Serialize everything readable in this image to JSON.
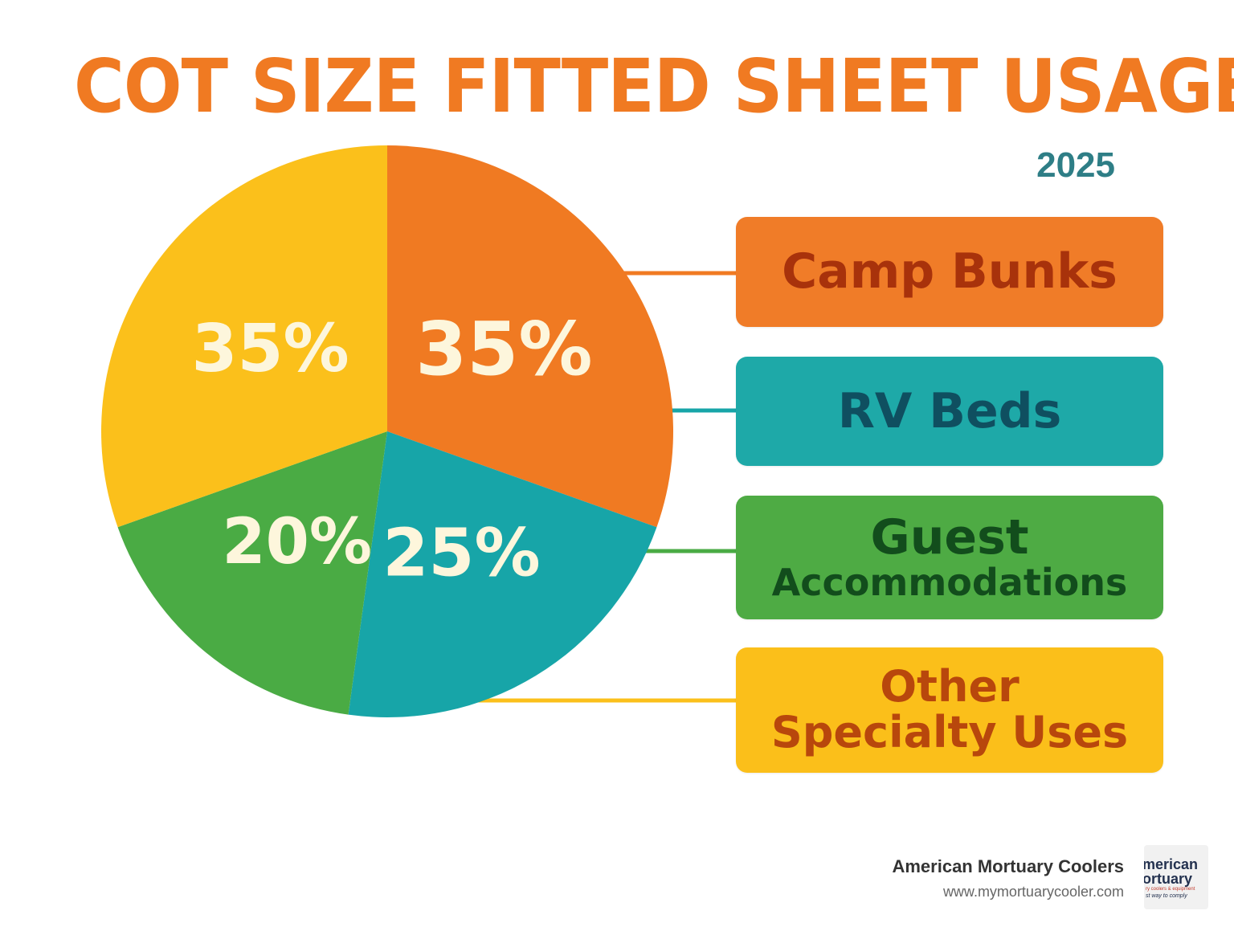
{
  "header": {
    "title": "COT SIZE FITTED SHEET USAGE",
    "year": "2025"
  },
  "chart_data": {
    "type": "pie",
    "title": "COT SIZE FITTED SHEET USAGE",
    "subtitle": "2025",
    "legend_position": "right",
    "slices": [
      {
        "name": "Camp Bunks",
        "value": 35,
        "label": "35%",
        "color": "#f07a22"
      },
      {
        "name": "RV Beds",
        "value": 25,
        "label": "25%",
        "color": "#17a5a8"
      },
      {
        "name": "Guest Accommodations",
        "value": 20,
        "label": "20%",
        "color": "#4aab44"
      },
      {
        "name": "Other Specialty Uses",
        "value": 35,
        "label": "35%",
        "color": "#fbc01b"
      }
    ]
  },
  "legend": {
    "camp": "Camp Bunks",
    "rv": "RV Beds",
    "guest_line1": "Guest",
    "guest_line2": "Accommodations",
    "other_line1": "Other",
    "other_line2": "Specialty Uses"
  },
  "footer": {
    "company": "American Mortuary Coolers",
    "url": "www.mymortuarycooler.com",
    "logo_text": [
      "merican",
      "ortuary",
      "ry coolers & equipment",
      "st way to comply"
    ]
  },
  "colors": {
    "title": "#f07a22",
    "year": "#2e7e86",
    "label_text": "#fdf6dc"
  }
}
